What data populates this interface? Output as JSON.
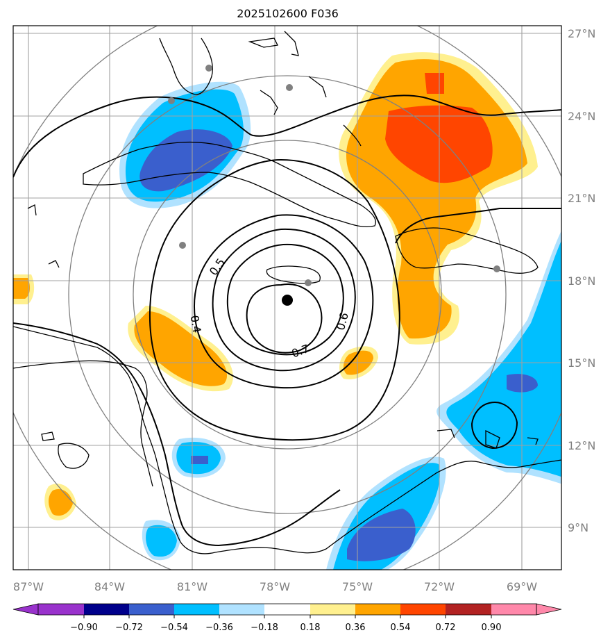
{
  "title": "2025102600 F036",
  "map": {
    "lat_labels": [
      "27°N",
      "24°N",
      "21°N",
      "18°N",
      "15°N",
      "12°N",
      "9°N"
    ],
    "lon_labels": [
      "87°W",
      "84°W",
      "81°W",
      "78°W",
      "75°W",
      "72°W",
      "69°W"
    ],
    "grid_color": "#a0a0a0",
    "coast_color": "#000000"
  },
  "contours": {
    "labels": [
      "0.5",
      "0.4",
      "0.6",
      "0.7"
    ],
    "color": "#000000"
  },
  "colorbar": {
    "tick_labels": [
      "−0.90",
      "−0.72",
      "−0.54",
      "−0.36",
      "−0.18",
      "0.18",
      "0.36",
      "0.54",
      "0.72",
      "0.90"
    ],
    "colors": [
      "#9932cc",
      "#00008b",
      "#3a5fcd",
      "#00bfff",
      "#b0e2ff",
      "#ffffff",
      "#fff08f",
      "#ffa500",
      "#ff4500",
      "#b22222",
      "#ff88aa"
    ]
  },
  "palette": {
    "pos1": "#fff08f",
    "pos2": "#ffa500",
    "pos3": "#ff4500",
    "neg1": "#b0e2ff",
    "neg2": "#00bfff",
    "neg3": "#3a5fcd"
  }
}
